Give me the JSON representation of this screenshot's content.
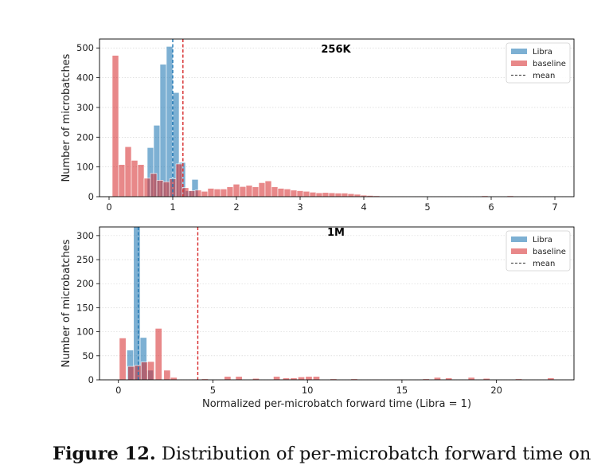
{
  "figure": {
    "caption_label": "Figure 12.",
    "caption_text": "Distribution of per-microbatch forward time on"
  },
  "chart_data": [
    {
      "type": "bar",
      "title": "256K",
      "xlabel": "",
      "ylabel": "Number of microbatches",
      "xlim": [
        -0.15,
        7.3
      ],
      "ylim": [
        0,
        530
      ],
      "xticks": [
        "0",
        "1",
        "2",
        "3",
        "4",
        "5",
        "6",
        "7"
      ],
      "yticks": [
        "0",
        "100",
        "200",
        "300",
        "400",
        "500"
      ],
      "grid": true,
      "legend_placement": "top-right",
      "bin_width": 0.1,
      "colors": {
        "Libra": "#1f77b4",
        "baseline": "#d62728",
        "mean_libra": "#1f77b4",
        "mean_baseline": "#d62728"
      },
      "series": [
        {
          "name": "Libra",
          "bin_starts": [
            0.6,
            0.7,
            0.8,
            0.9,
            1.0,
            1.1,
            1.2,
            1.3
          ],
          "values": [
            165,
            240,
            445,
            505,
            350,
            115,
            20,
            58
          ]
        },
        {
          "name": "baseline",
          "bin_starts": [
            0.05,
            0.15,
            0.25,
            0.35,
            0.45,
            0.55,
            0.65,
            0.75,
            0.85,
            0.95,
            1.05,
            1.15,
            1.25,
            1.35,
            1.45,
            1.55,
            1.65,
            1.75,
            1.85,
            1.95,
            2.05,
            2.15,
            2.25,
            2.35,
            2.45,
            2.55,
            2.65,
            2.75,
            2.85,
            2.95,
            3.05,
            3.15,
            3.25,
            3.35,
            3.45,
            3.55,
            3.65,
            3.75,
            3.85,
            3.95,
            4.05,
            4.15,
            4.25,
            4.35,
            4.55,
            4.85,
            5.15,
            5.45,
            5.85,
            6.25,
            6.45
          ],
          "values": [
            475,
            108,
            168,
            122,
            108,
            62,
            78,
            55,
            50,
            60,
            110,
            30,
            20,
            22,
            18,
            28,
            26,
            26,
            33,
            42,
            34,
            38,
            33,
            47,
            53,
            33,
            28,
            26,
            22,
            20,
            18,
            15,
            13,
            14,
            13,
            12,
            12,
            10,
            8,
            5,
            4,
            3,
            2,
            2,
            2,
            2,
            2,
            2,
            3,
            3,
            2
          ]
        }
      ],
      "mean": {
        "label": "mean",
        "Libra": 1.0,
        "baseline": 1.16
      },
      "legend": [
        "Libra",
        "baseline",
        "mean"
      ]
    },
    {
      "type": "bar",
      "title": "1M",
      "xlabel": "Normalized per-microbatch forward time (Libra = 1)",
      "ylabel": "Number of microbatches",
      "xlim": [
        -1.0,
        24.1
      ],
      "ylim": [
        0,
        318
      ],
      "xticks": [
        "0",
        "5",
        "10",
        "15",
        "20"
      ],
      "yticks": [
        "0",
        "50",
        "100",
        "150",
        "200",
        "250",
        "300"
      ],
      "grid": true,
      "legend_placement": "top-right",
      "bin_width": 0.35,
      "colors": {
        "Libra": "#1f77b4",
        "baseline": "#d62728",
        "mean_libra": "#1f77b4",
        "mean_baseline": "#d62728"
      },
      "series": [
        {
          "name": "Libra",
          "bin_starts": [
            0.45,
            0.8,
            1.15,
            1.5
          ],
          "values": [
            62,
            318,
            88,
            20
          ]
        },
        {
          "name": "baseline",
          "bin_starts": [
            0.05,
            0.5,
            0.85,
            1.2,
            1.55,
            1.95,
            2.4,
            2.75,
            4.4,
            5.6,
            6.2,
            7.1,
            8.2,
            8.7,
            9.1,
            9.5,
            9.9,
            10.3,
            11.2,
            12.3,
            13.4,
            14.7,
            16.1,
            16.7,
            17.3,
            18.5,
            19.3,
            21.0,
            22.7
          ],
          "values": [
            87,
            28,
            30,
            37,
            38,
            107,
            20,
            5,
            2,
            7,
            7,
            3,
            7,
            4,
            4,
            6,
            7,
            7,
            2,
            2,
            1,
            1,
            2,
            5,
            4,
            5,
            3,
            2,
            4
          ]
        }
      ],
      "mean": {
        "label": "mean",
        "Libra": 1.05,
        "baseline": 4.2
      },
      "legend": [
        "Libra",
        "baseline",
        "mean"
      ]
    }
  ]
}
